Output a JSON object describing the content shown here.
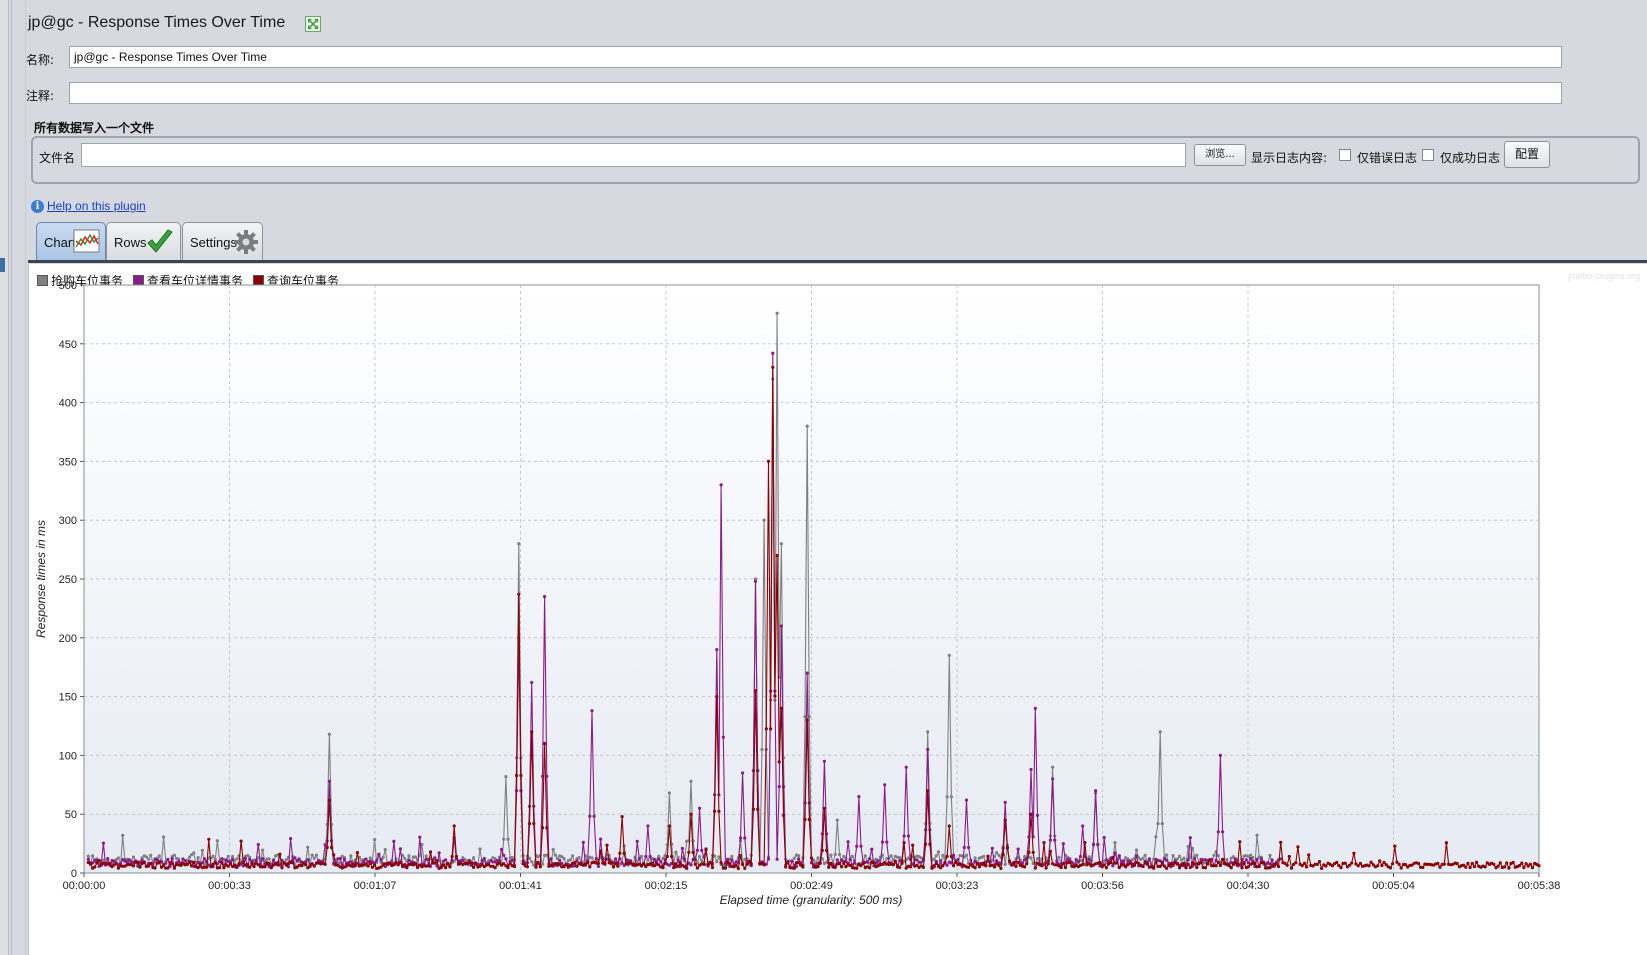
{
  "window": {
    "title": "jp@gc - Response Times Over Time"
  },
  "form": {
    "name_label": "名称:",
    "name_value": "jp@gc - Response Times Over Time",
    "comment_label": "注释:",
    "comment_value": ""
  },
  "file_group": {
    "title": "所有数据写入一个文件",
    "filename_label": "文件名",
    "filename_value": "",
    "browse_button": "浏览...",
    "show_log_label": "显示日志内容:",
    "errors_only_label": "仅错误日志",
    "success_only_label": "仅成功日志",
    "configure_button": "配置"
  },
  "help": {
    "link_text": "Help on this plugin"
  },
  "tabs": [
    {
      "label": "Chart",
      "icon": "chart-icon",
      "active": true
    },
    {
      "label": "Rows",
      "icon": "checkmark-icon",
      "active": false
    },
    {
      "label": "Settings",
      "icon": "gear-icon",
      "active": false
    }
  ],
  "watermark": "jmeter-plugins.org",
  "chart_data": {
    "type": "line",
    "xlabel": "Elapsed time (granularity: 500 ms)",
    "ylabel": "Response times in ms",
    "ylim": [
      0,
      500
    ],
    "xlim_seconds": [
      0,
      338
    ],
    "y_ticks": [
      "0",
      "50",
      "100",
      "150",
      "200",
      "250",
      "300",
      "350",
      "400",
      "450",
      "500"
    ],
    "x_ticks": [
      "00:00:00",
      "00:00:33",
      "00:01:07",
      "00:01:41",
      "00:02:15",
      "00:02:49",
      "00:03:23",
      "00:03:56",
      "00:04:30",
      "00:05:04",
      "00:05:38"
    ],
    "grid": true,
    "legend_position": "top-left",
    "series": [
      {
        "name": "抢购车位事务",
        "color": "#808080",
        "baseline": 10,
        "end_seconds": 276,
        "peaks": [
          [
            57,
            118
          ],
          [
            98,
            82
          ],
          [
            101,
            280
          ],
          [
            136,
            68
          ],
          [
            141,
            78
          ],
          [
            156,
            250
          ],
          [
            158,
            300
          ],
          [
            160,
            420
          ],
          [
            161,
            476
          ],
          [
            162,
            280
          ],
          [
            168,
            380
          ],
          [
            175,
            45
          ],
          [
            196,
            120
          ],
          [
            201,
            185
          ],
          [
            225,
            90
          ],
          [
            235,
            68
          ],
          [
            250,
            120
          ],
          [
            263,
            18
          ]
        ]
      },
      {
        "name": "查看车位详情事务",
        "color": "#8b1a8b",
        "baseline": 8,
        "end_seconds": 278,
        "peaks": [
          [
            57,
            78
          ],
          [
            86,
            30
          ],
          [
            101,
            200
          ],
          [
            104,
            162
          ],
          [
            107,
            235
          ],
          [
            118,
            138
          ],
          [
            131,
            40
          ],
          [
            143,
            55
          ],
          [
            147,
            190
          ],
          [
            148,
            330
          ],
          [
            153,
            85
          ],
          [
            156,
            248
          ],
          [
            160,
            442
          ],
          [
            162,
            210
          ],
          [
            168,
            170
          ],
          [
            172,
            95
          ],
          [
            180,
            65
          ],
          [
            186,
            75
          ],
          [
            191,
            90
          ],
          [
            196,
            105
          ],
          [
            205,
            62
          ],
          [
            214,
            60
          ],
          [
            220,
            88
          ],
          [
            221,
            140
          ],
          [
            225,
            80
          ],
          [
            232,
            40
          ],
          [
            235,
            70
          ],
          [
            264,
            100
          ]
        ]
      },
      {
        "name": "查询车位事务",
        "color": "#8b0000",
        "baseline": 6,
        "end_seconds": 338,
        "peaks": [
          [
            57,
            62
          ],
          [
            86,
            40
          ],
          [
            101,
            237
          ],
          [
            104,
            120
          ],
          [
            107,
            110
          ],
          [
            125,
            48
          ],
          [
            136,
            40
          ],
          [
            141,
            50
          ],
          [
            147,
            150
          ],
          [
            156,
            155
          ],
          [
            159,
            350
          ],
          [
            160,
            430
          ],
          [
            161,
            270
          ],
          [
            162,
            140
          ],
          [
            168,
            130
          ],
          [
            172,
            55
          ],
          [
            196,
            70
          ],
          [
            201,
            40
          ],
          [
            214,
            45
          ],
          [
            220,
            50
          ]
        ]
      }
    ]
  }
}
